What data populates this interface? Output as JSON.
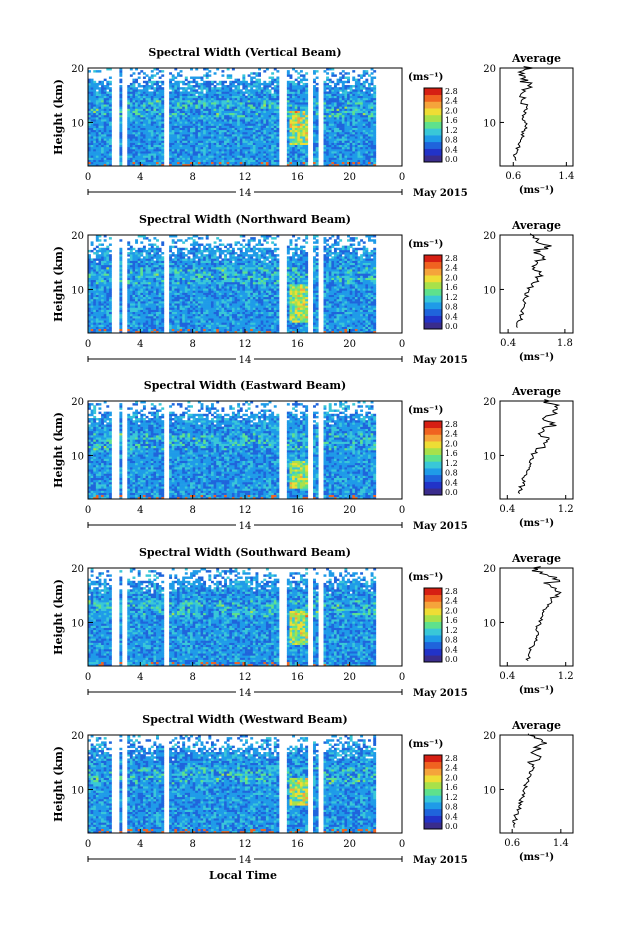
{
  "colorbar": {
    "unit": "(ms⁻¹)",
    "ticks": [
      "2.8",
      "2.4",
      "2.0",
      "1.6",
      "1.2",
      "0.8",
      "0.4",
      "0.0"
    ],
    "colors": [
      "#d61f13",
      "#f06320",
      "#f5a43b",
      "#eedd35",
      "#a8e14a",
      "#5ee18d",
      "#39c7d8",
      "#1f9be8",
      "#1f64dc",
      "#2233c8",
      "#3a2c8c"
    ]
  },
  "date_label": "May 2015",
  "day_label": "14",
  "x_axis_title": "Local Time",
  "y_axis_title": "Height (km)",
  "average_title": "Average",
  "average_xlabel": "(ms⁻¹)",
  "chart_data": [
    {
      "type": "heatmap",
      "title": "Spectral Width (Vertical Beam)",
      "x_ticks": [
        "0",
        "4",
        "8",
        "12",
        "16",
        "20",
        "0"
      ],
      "y_ticks": [
        "20",
        "10"
      ],
      "xlim": [
        0,
        24
      ],
      "ylim": [
        2,
        20
      ],
      "gaps": [
        [
          1.9,
          2.4
        ],
        [
          2.6,
          2.9
        ],
        [
          5.8,
          6.1
        ],
        [
          14.7,
          15.2
        ],
        [
          16.8,
          17.2
        ],
        [
          17.6,
          18.0
        ],
        [
          22.0,
          23.0
        ]
      ],
      "hot_region": {
        "x": [
          15.3,
          17.0
        ],
        "y": [
          6,
          12
        ]
      },
      "profile": {
        "type": "line",
        "xticks": [
          "0.6",
          "1.4"
        ],
        "xtick_values": [
          0.6,
          1.4
        ],
        "xlim": [
          0.4,
          1.5
        ],
        "height": [
          3,
          4,
          5,
          6,
          7,
          8,
          9,
          10,
          11,
          12,
          13,
          14,
          15,
          16,
          17,
          18,
          19,
          20
        ],
        "value": [
          0.62,
          0.62,
          0.66,
          0.7,
          0.72,
          0.75,
          0.78,
          0.8,
          0.76,
          0.78,
          0.82,
          0.74,
          0.72,
          0.8,
          0.86,
          0.76,
          0.72,
          0.82
        ]
      }
    },
    {
      "type": "heatmap",
      "title": "Spectral Width (Northward Beam)",
      "x_ticks": [
        "0",
        "4",
        "8",
        "12",
        "16",
        "20",
        "0"
      ],
      "y_ticks": [
        "20",
        "10"
      ],
      "xlim": [
        0,
        24
      ],
      "ylim": [
        2,
        20
      ],
      "gaps": [
        [
          1.9,
          2.4
        ],
        [
          2.6,
          2.9
        ],
        [
          5.8,
          6.1
        ],
        [
          14.7,
          15.2
        ],
        [
          16.8,
          17.2
        ],
        [
          17.6,
          18.0
        ],
        [
          22.0,
          23.0
        ]
      ],
      "hot_region": {
        "x": [
          15.3,
          17.0
        ],
        "y": [
          4,
          11
        ]
      },
      "profile": {
        "type": "line",
        "xticks": [
          "0.4",
          "1.8"
        ],
        "xtick_values": [
          0.4,
          1.8
        ],
        "xlim": [
          0.2,
          2.0
        ],
        "height": [
          3,
          4,
          5,
          6,
          7,
          8,
          9,
          10,
          11,
          12,
          13,
          14,
          15,
          16,
          17,
          18,
          19,
          20
        ],
        "value": [
          0.6,
          0.65,
          0.72,
          0.74,
          0.78,
          0.8,
          0.86,
          0.9,
          1.0,
          1.12,
          1.2,
          1.02,
          1.1,
          1.25,
          1.08,
          1.4,
          1.1,
          0.95
        ]
      }
    },
    {
      "type": "heatmap",
      "title": "Spectral Width (Eastward Beam)",
      "x_ticks": [
        "0",
        "4",
        "8",
        "12",
        "16",
        "20",
        "0"
      ],
      "y_ticks": [
        "20",
        "10"
      ],
      "xlim": [
        0,
        24
      ],
      "ylim": [
        2,
        20
      ],
      "gaps": [
        [
          1.9,
          2.4
        ],
        [
          2.6,
          2.9
        ],
        [
          5.8,
          6.1
        ],
        [
          14.7,
          15.2
        ],
        [
          16.8,
          17.2
        ],
        [
          17.6,
          18.0
        ],
        [
          22.0,
          23.0
        ]
      ],
      "hot_region": {
        "x": [
          15.3,
          17.0
        ],
        "y": [
          4,
          9
        ]
      },
      "profile": {
        "type": "line",
        "xticks": [
          "0.4",
          "1.2"
        ],
        "xtick_values": [
          0.4,
          1.2
        ],
        "xlim": [
          0.3,
          1.3
        ],
        "height": [
          3,
          4,
          5,
          6,
          7,
          8,
          9,
          10,
          11,
          12,
          13,
          14,
          15,
          16,
          17,
          18,
          19,
          20
        ],
        "value": [
          0.55,
          0.58,
          0.62,
          0.62,
          0.66,
          0.7,
          0.72,
          0.74,
          0.8,
          0.9,
          0.95,
          0.85,
          0.92,
          1.02,
          0.9,
          1.05,
          1.1,
          0.95
        ]
      }
    },
    {
      "type": "heatmap",
      "title": "Spectral Width (Southward Beam)",
      "x_ticks": [
        "0",
        "4",
        "8",
        "12",
        "16",
        "20",
        "0"
      ],
      "y_ticks": [
        "20",
        "10"
      ],
      "xlim": [
        0,
        24
      ],
      "ylim": [
        2,
        20
      ],
      "gaps": [
        [
          1.9,
          2.4
        ],
        [
          2.6,
          2.9
        ],
        [
          5.8,
          6.1
        ],
        [
          14.7,
          15.2
        ],
        [
          16.8,
          17.2
        ],
        [
          17.6,
          18.0
        ],
        [
          22.0,
          23.0
        ]
      ],
      "hot_region": {
        "x": [
          15.3,
          17.0
        ],
        "y": [
          6,
          12
        ]
      },
      "profile": {
        "type": "line",
        "xticks": [
          "0.4",
          "1.2"
        ],
        "xtick_values": [
          0.4,
          1.2
        ],
        "xlim": [
          0.3,
          1.3
        ],
        "height": [
          3,
          4,
          5,
          6,
          7,
          8,
          9,
          10,
          11,
          12,
          13,
          14,
          15,
          16,
          17,
          18,
          19,
          20
        ],
        "value": [
          0.68,
          0.7,
          0.72,
          0.75,
          0.8,
          0.82,
          0.8,
          0.85,
          0.88,
          0.9,
          0.95,
          1.0,
          1.05,
          1.1,
          0.95,
          1.05,
          0.9,
          0.8
        ]
      }
    },
    {
      "type": "heatmap",
      "title": "Spectral Width (Westward Beam)",
      "x_ticks": [
        "0",
        "4",
        "8",
        "12",
        "16",
        "20",
        "0"
      ],
      "y_ticks": [
        "20",
        "10"
      ],
      "xlim": [
        0,
        24
      ],
      "ylim": [
        2,
        20
      ],
      "gaps": [
        [
          1.9,
          2.4
        ],
        [
          2.6,
          2.9
        ],
        [
          5.8,
          6.1
        ],
        [
          14.7,
          15.2
        ],
        [
          16.8,
          17.2
        ],
        [
          17.6,
          18.0
        ],
        [
          22.0,
          23.0
        ]
      ],
      "hot_region": {
        "x": [
          15.3,
          17.0
        ],
        "y": [
          7,
          12
        ]
      },
      "profile": {
        "type": "line",
        "xticks": [
          "0.6",
          "1.4"
        ],
        "xtick_values": [
          0.6,
          1.4
        ],
        "xlim": [
          0.4,
          1.6
        ],
        "height": [
          3,
          4,
          5,
          6,
          7,
          8,
          9,
          10,
          11,
          12,
          13,
          14,
          15,
          16,
          17,
          18,
          19,
          20
        ],
        "value": [
          0.62,
          0.64,
          0.66,
          0.7,
          0.72,
          0.74,
          0.78,
          0.8,
          0.82,
          0.86,
          0.9,
          0.95,
          0.9,
          1.05,
          0.92,
          1.0,
          1.1,
          0.9
        ]
      }
    }
  ]
}
